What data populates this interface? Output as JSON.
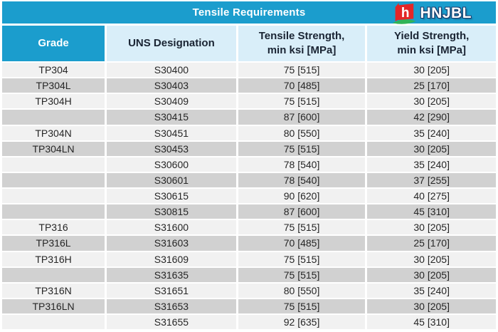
{
  "header": {
    "title": "Tensile Requirements",
    "brand": "HNJBL"
  },
  "colors": {
    "accent_blue": "#1b9dcd",
    "header_light_blue": "#d9eef9",
    "row_light": "#f1f1f1",
    "row_dark": "#d1d1d1",
    "logo_red": "#e42627",
    "logo_green": "#2fb457",
    "brand_text": "#ffffff"
  },
  "table": {
    "columns": [
      {
        "line1": "Grade",
        "line2": ""
      },
      {
        "line1": "UNS Designation",
        "line2": ""
      },
      {
        "line1": "Tensile Strength,",
        "line2": "min ksi [MPa]"
      },
      {
        "line1": "Yield Strength,",
        "line2": "min ksi [MPa]"
      }
    ],
    "rows": [
      {
        "grade": "TP304",
        "uns": "S30400",
        "tensile": "75 [515]",
        "yield": "30 [205]"
      },
      {
        "grade": "TP304L",
        "uns": "S30403",
        "tensile": "70 [485]",
        "yield": "25 [170]"
      },
      {
        "grade": "TP304H",
        "uns": "S30409",
        "tensile": "75 [515]",
        "yield": "30 [205]"
      },
      {
        "grade": "",
        "uns": "S30415",
        "tensile": "87 [600]",
        "yield": "42 [290]"
      },
      {
        "grade": "TP304N",
        "uns": "S30451",
        "tensile": "80 [550]",
        "yield": "35 [240]"
      },
      {
        "grade": "TP304LN",
        "uns": "S30453",
        "tensile": "75 [515]",
        "yield": "30 [205]"
      },
      {
        "grade": "",
        "uns": "S30600",
        "tensile": "78 [540]",
        "yield": "35 [240]"
      },
      {
        "grade": "",
        "uns": "S30601",
        "tensile": "78 [540]",
        "yield": "37 [255]"
      },
      {
        "grade": "",
        "uns": "S30615",
        "tensile": "90 [620]",
        "yield": "40 [275]"
      },
      {
        "grade": "",
        "uns": "S30815",
        "tensile": "87 [600]",
        "yield": "45 [310]"
      },
      {
        "grade": "TP316",
        "uns": "S31600",
        "tensile": "75 [515]",
        "yield": "30 [205]"
      },
      {
        "grade": "TP316L",
        "uns": "S31603",
        "tensile": "70 [485]",
        "yield": "25 [170]"
      },
      {
        "grade": "TP316H",
        "uns": "S31609",
        "tensile": "75 [515]",
        "yield": "30 [205]"
      },
      {
        "grade": "",
        "uns": "S31635",
        "tensile": "75 [515]",
        "yield": "30 [205]"
      },
      {
        "grade": "TP316N",
        "uns": "S31651",
        "tensile": "80 [550]",
        "yield": "35 [240]"
      },
      {
        "grade": "TP316LN",
        "uns": "S31653",
        "tensile": "75 [515]",
        "yield": "30 [205]"
      },
      {
        "grade": "",
        "uns": "S31655",
        "tensile": "92 [635]",
        "yield": "45 [310]"
      }
    ]
  }
}
